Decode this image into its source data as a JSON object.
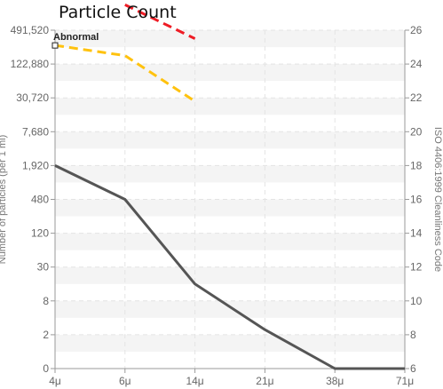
{
  "chart_data": {
    "type": "line",
    "title": "Particle Count",
    "x": [
      "4μ",
      "6μ",
      "14μ",
      "21μ",
      "38μ",
      "71μ"
    ],
    "y_left": {
      "label": "Number of particles (per 1 ml)",
      "ticks": [
        "0",
        "2",
        "8",
        "30",
        "120",
        "480",
        "1,920",
        "7,680",
        "30,720",
        "122,880",
        "491,520"
      ]
    },
    "y_right": {
      "label": "ISO 4406:1999 Cleanliness Code",
      "ticks": [
        "6",
        "8",
        "10",
        "12",
        "14",
        "16",
        "18",
        "20",
        "22",
        "24",
        "26"
      ],
      "ylim": [
        6,
        26
      ]
    },
    "annotation": "Abnormal",
    "series": [
      {
        "role": "measured",
        "color": "#555555",
        "dash": "solid",
        "points": [
          {
            "x": "4μ",
            "code": 18
          },
          {
            "x": "6μ",
            "code": 16
          },
          {
            "x": "14μ",
            "code": 11
          },
          {
            "x": "21μ",
            "code": 8.3
          },
          {
            "x": "38μ",
            "code": 6
          },
          {
            "x": "71μ",
            "code": 6
          }
        ]
      },
      {
        "role": "abnormal-limit",
        "color": "#FFC20E",
        "dash": "dashed",
        "points": [
          {
            "x": "4μ",
            "code": 25.1
          },
          {
            "x": "6μ",
            "code": 24.5
          },
          {
            "x": "14μ",
            "code": 21.8
          }
        ]
      },
      {
        "role": "critical-limit",
        "color": "#EE1C25",
        "dash": "dashed",
        "points": [
          {
            "x": "6μ",
            "code": 27.5
          },
          {
            "x": "14μ",
            "code": 25.5
          }
        ]
      }
    ],
    "grid": true
  }
}
